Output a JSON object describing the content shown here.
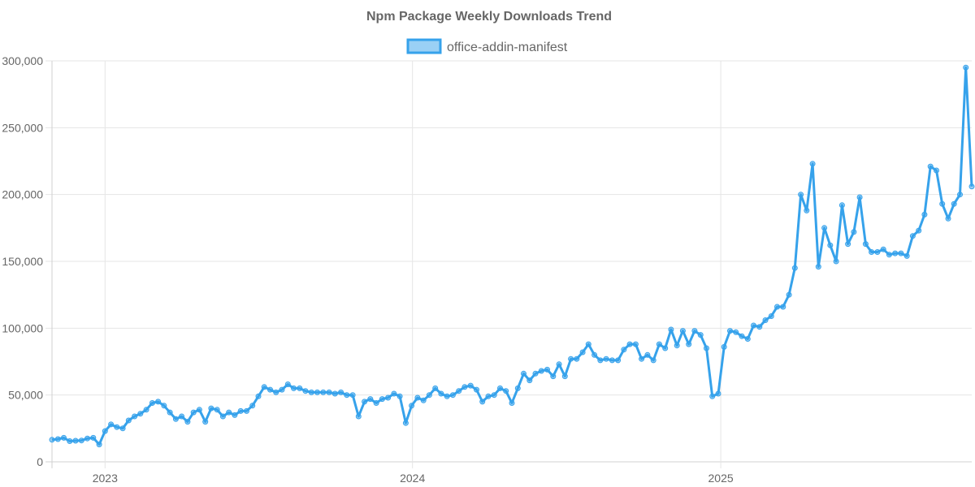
{
  "chart_data": {
    "type": "line",
    "title": "Npm Package Weekly Downloads Trend",
    "xlabel": "",
    "ylabel": "",
    "legend_position": "top",
    "grid": true,
    "ylim": [
      0,
      300000
    ],
    "y_ticks": [
      "0",
      "50,000",
      "100,000",
      "150,000",
      "200,000",
      "250,000",
      "300,000"
    ],
    "x_ticks": [
      "2023",
      "2024",
      "2025"
    ],
    "colors": {
      "line": "#36a2eb",
      "fill": "rgba(54,162,235,0.5)",
      "grid": "#e5e5e5",
      "text": "#666666"
    },
    "series": [
      {
        "name": "office-addin-manifest",
        "x": [
          "2022-10-30",
          "2022-11-06",
          "2022-11-13",
          "2022-11-20",
          "2022-11-27",
          "2022-12-04",
          "2022-12-11",
          "2022-12-18",
          "2022-12-25",
          "2023-01-01",
          "2023-01-08",
          "2023-01-15",
          "2023-01-22",
          "2023-01-29",
          "2023-02-05",
          "2023-02-12",
          "2023-02-19",
          "2023-02-26",
          "2023-03-05",
          "2023-03-12",
          "2023-03-19",
          "2023-03-26",
          "2023-04-02",
          "2023-04-09",
          "2023-04-16",
          "2023-04-23",
          "2023-04-30",
          "2023-05-07",
          "2023-05-14",
          "2023-05-21",
          "2023-05-28",
          "2023-06-04",
          "2023-06-11",
          "2023-06-18",
          "2023-06-25",
          "2023-07-02",
          "2023-07-09",
          "2023-07-16",
          "2023-07-23",
          "2023-07-30",
          "2023-08-06",
          "2023-08-13",
          "2023-08-20",
          "2023-08-27",
          "2023-09-03",
          "2023-09-10",
          "2023-09-17",
          "2023-09-24",
          "2023-10-01",
          "2023-10-08",
          "2023-10-15",
          "2023-10-22",
          "2023-10-29",
          "2023-11-05",
          "2023-11-12",
          "2023-11-19",
          "2023-11-26",
          "2023-12-03",
          "2023-12-10",
          "2023-12-17",
          "2023-12-24",
          "2023-12-31",
          "2024-01-07",
          "2024-01-14",
          "2024-01-21",
          "2024-01-28",
          "2024-02-04",
          "2024-02-11",
          "2024-02-18",
          "2024-02-25",
          "2024-03-03",
          "2024-03-10",
          "2024-03-17",
          "2024-03-24",
          "2024-03-31",
          "2024-04-07",
          "2024-04-14",
          "2024-04-21",
          "2024-04-28",
          "2024-05-05",
          "2024-05-12",
          "2024-05-19",
          "2024-05-26",
          "2024-06-02",
          "2024-06-09",
          "2024-06-16",
          "2024-06-23",
          "2024-06-30",
          "2024-07-07",
          "2024-07-14",
          "2024-07-21",
          "2024-07-28",
          "2024-08-04",
          "2024-08-11",
          "2024-08-18",
          "2024-08-25",
          "2024-09-01",
          "2024-09-08",
          "2024-09-15",
          "2024-09-22",
          "2024-09-29",
          "2024-10-06",
          "2024-10-13",
          "2024-10-20",
          "2024-10-27",
          "2024-11-03",
          "2024-11-10",
          "2024-11-17",
          "2024-11-24",
          "2024-12-01",
          "2024-12-08",
          "2024-12-15",
          "2024-12-22",
          "2024-12-29",
          "2025-01-05",
          "2025-01-12",
          "2025-01-19",
          "2025-01-26",
          "2025-02-02",
          "2025-02-09",
          "2025-02-16",
          "2025-02-23",
          "2025-03-02",
          "2025-03-09",
          "2025-03-16",
          "2025-03-23",
          "2025-03-30",
          "2025-04-06",
          "2025-04-13",
          "2025-04-20",
          "2025-04-27",
          "2025-05-04",
          "2025-05-11",
          "2025-05-18",
          "2025-05-25",
          "2025-06-01",
          "2025-06-08",
          "2025-06-15",
          "2025-06-22",
          "2025-06-29",
          "2025-07-06",
          "2025-07-13",
          "2025-07-20",
          "2025-07-27",
          "2025-08-03",
          "2025-08-10",
          "2025-08-17",
          "2025-08-24",
          "2025-08-31",
          "2025-09-07",
          "2025-09-14",
          "2025-09-21",
          "2025-09-28",
          "2025-10-05",
          "2025-10-12",
          "2025-10-19",
          "2025-10-26"
        ],
        "values": [
          16500,
          17000,
          18000,
          15500,
          15800,
          16000,
          17500,
          18000,
          13000,
          23000,
          28000,
          26000,
          25000,
          31000,
          34000,
          36000,
          39000,
          44000,
          45000,
          42000,
          37000,
          32000,
          34000,
          30000,
          37000,
          39000,
          30000,
          40000,
          39000,
          34000,
          37000,
          35000,
          38000,
          38000,
          42000,
          49000,
          56000,
          54000,
          52000,
          54000,
          58000,
          55000,
          55000,
          53000,
          52000,
          52000,
          52000,
          52000,
          51000,
          52000,
          50000,
          50000,
          34000,
          45000,
          47000,
          44000,
          47000,
          48000,
          51000,
          49000,
          29000,
          42000,
          48000,
          46000,
          50000,
          55000,
          51000,
          49000,
          50000,
          53000,
          56000,
          57000,
          54000,
          45000,
          49000,
          50000,
          55000,
          53000,
          44000,
          55000,
          66000,
          61000,
          66000,
          68000,
          69000,
          64000,
          73000,
          64000,
          77000,
          77000,
          82000,
          88000,
          80000,
          76000,
          77000,
          76000,
          76000,
          84000,
          88000,
          88000,
          77000,
          80000,
          76000,
          88000,
          85000,
          99000,
          87000,
          98000,
          88000,
          98000,
          95000,
          85000,
          49000,
          51000,
          86000,
          98000,
          97000,
          94000,
          92000,
          102000,
          101000,
          106000,
          109000,
          116000,
          116000,
          125000,
          145000,
          200000,
          188000,
          223000,
          146000,
          175000,
          162000,
          150000,
          192000,
          163000,
          172000,
          198000,
          163000,
          157000,
          157000,
          159000,
          155000,
          156000,
          156000,
          154000,
          169000,
          173000,
          185000,
          221000,
          218000,
          193000,
          182000,
          193000,
          200000,
          295000,
          206000
        ]
      }
    ]
  }
}
